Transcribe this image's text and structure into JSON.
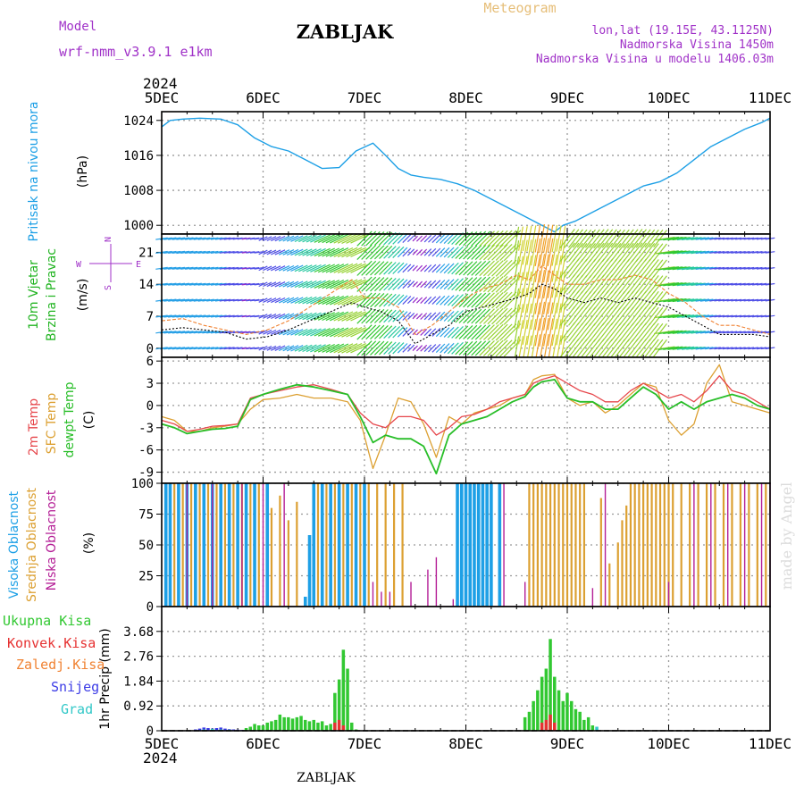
{
  "header": {
    "model_label": "Model",
    "model_name": "wrf-nmm_v3.9.1 e1km",
    "station": "ZABLJAK",
    "product": "Meteogram",
    "location": "lon,lat (19.15E, 43.1125N)",
    "altitude": "Nadmorska Visina 1450m",
    "model_altitude": "Nadmorska Visina u modelu 1406.03m"
  },
  "footer": {
    "station": "ZABLJAK",
    "watermark": "made by Angel"
  },
  "time_axis": {
    "year": "2024",
    "labels": [
      "5DEC",
      "6DEC",
      "7DEC",
      "8DEC",
      "9DEC",
      "10DEC",
      "11DEC"
    ],
    "range_hours": [
      0,
      144
    ]
  },
  "colors": {
    "pressure": "#1ea0e6",
    "wind_label": "#22b422",
    "temp2m": "#e6464b",
    "sfc": "#dca032",
    "dewpt": "#28be28",
    "purple": "#a032c8",
    "gold": "#e6be78",
    "high_cloud": "#1ea0e6",
    "mid_cloud": "#dca032",
    "low_cloud": "#b41e96",
    "tot_precip": "#32c832",
    "conv_precip": "#e63232",
    "frz_precip": "#f08232",
    "snow": "#3c3ce6",
    "hail": "#32c8c8"
  },
  "chart_data": [
    {
      "type": "line",
      "panel": "pressure",
      "ylabel": "Pritisak na nivou mora",
      "unit": "(hPa)",
      "ylim": [
        998,
        1026
      ],
      "yticks": [
        "1000",
        "1008",
        "1016",
        "1024"
      ],
      "grid": true,
      "x": [
        0,
        2,
        5,
        9,
        14,
        18,
        22,
        26,
        30,
        34,
        38,
        42,
        46,
        50,
        53,
        56,
        59,
        62,
        66,
        70,
        74,
        78,
        82,
        86,
        90,
        93,
        95,
        98,
        102,
        106,
        110,
        114,
        118,
        122,
        126,
        130,
        134,
        138,
        142,
        144
      ],
      "series": [
        {
          "values": [
            1022.5,
            1024,
            1024.3,
            1024.5,
            1024.3,
            1023,
            1020,
            1018,
            1017,
            1015,
            1013,
            1013.2,
            1017,
            1018.8,
            1016,
            1013,
            1011.5,
            1011,
            1010.5,
            1009.5,
            1008,
            1006,
            1004,
            1002,
            1000,
            998.5,
            1000,
            1001,
            1003,
            1005,
            1007,
            1009,
            1010,
            1012,
            1015,
            1018,
            1020,
            1022,
            1023.5,
            1024.5
          ]
        }
      ]
    },
    {
      "type": "line",
      "panel": "wind",
      "ylabel": "10m Vjetar Brzina i Pravac",
      "unit": "(m/s)",
      "direction_key": [
        "N",
        "E",
        "S",
        "W"
      ],
      "ylim": [
        -2,
        25
      ],
      "yticks": [
        "0",
        "7",
        "14",
        "21"
      ],
      "grid": true,
      "x": [
        0,
        5,
        10,
        15,
        20,
        25,
        30,
        35,
        40,
        45,
        48,
        52,
        56,
        60,
        64,
        68,
        72,
        76,
        80,
        84,
        87,
        90,
        93,
        96,
        100,
        104,
        108,
        112,
        116,
        120,
        124,
        128,
        132,
        136,
        140,
        144
      ],
      "series": [
        {
          "name": "speed",
          "values": [
            4,
            4.5,
            4,
            3.5,
            2,
            2.5,
            4,
            6,
            8,
            10,
            9,
            8,
            6,
            1,
            3,
            5,
            8,
            9,
            10,
            11,
            12,
            14,
            13,
            11,
            10,
            11,
            10,
            11,
            10,
            9,
            7,
            5,
            3,
            3,
            3,
            2.5
          ]
        },
        {
          "name": "gust",
          "values": [
            6,
            6.5,
            5,
            4,
            3,
            4,
            6,
            9,
            12,
            15,
            11,
            11,
            9,
            3,
            5,
            8,
            11,
            13,
            14,
            16,
            15,
            18,
            16,
            14,
            14,
            15,
            15,
            16,
            15,
            12,
            10,
            7,
            5,
            5,
            4,
            3
          ]
        }
      ]
    },
    {
      "type": "line",
      "panel": "temperature",
      "ylabel": "2m Temp / SFC Temp / dewpt Temp",
      "unit": "(C)",
      "ylim": [
        -10.5,
        6.5
      ],
      "yticks": [
        "-9",
        "-6",
        "-3",
        "0",
        "3",
        "6"
      ],
      "grid": true,
      "x": [
        0,
        3,
        6,
        9,
        12,
        15,
        18,
        21,
        24,
        28,
        32,
        36,
        40,
        44,
        47,
        50,
        53,
        56,
        59,
        62,
        65,
        68,
        71,
        74,
        77,
        80,
        83,
        86,
        88,
        90,
        93,
        96,
        99,
        102,
        105,
        108,
        111,
        114,
        117,
        120,
        123,
        126,
        129,
        132,
        135,
        138,
        141,
        144
      ],
      "series": [
        {
          "name": "2m Temp",
          "values": [
            -2,
            -2.5,
            -3.5,
            -3.2,
            -2.8,
            -2.7,
            -2.5,
            1,
            1.5,
            2,
            2.5,
            2.8,
            2.2,
            1.5,
            -1,
            -2.5,
            -3,
            -1.5,
            -1.5,
            -2,
            -4,
            -3,
            -1.5,
            -1.2,
            -0.5,
            0.5,
            1,
            1.5,
            3,
            3.5,
            4,
            3,
            2,
            1.5,
            0.5,
            0.5,
            2,
            3,
            2,
            1,
            1.5,
            0.5,
            2,
            4,
            2,
            1.5,
            0.5,
            -0.5
          ]
        },
        {
          "name": "SFC Temp",
          "values": [
            -1.5,
            -2,
            -3.5,
            -3.5,
            -3,
            -2.8,
            -2.5,
            -0.5,
            0.8,
            1,
            1.5,
            1,
            1,
            0.5,
            -2,
            -8.5,
            -4,
            1,
            0.5,
            -2.5,
            -7,
            -1.5,
            -2.5,
            -1,
            -0.5,
            0,
            1,
            1.5,
            3.5,
            4,
            4.2,
            1,
            0,
            0.5,
            -1,
            0,
            1.5,
            3,
            2.5,
            -2,
            -4,
            -2.5,
            3,
            5.5,
            0.5,
            0,
            -0.5,
            -1
          ]
        },
        {
          "name": "dewpt Temp",
          "values": [
            -2.5,
            -3,
            -3.8,
            -3.5,
            -3.2,
            -3.1,
            -2.8,
            0.8,
            1.5,
            2.2,
            2.8,
            2.5,
            2,
            1.5,
            -1.5,
            -5,
            -4,
            -4.5,
            -4.5,
            -5.5,
            -9.2,
            -4,
            -2.5,
            -2,
            -1.5,
            -0.5,
            0.5,
            1.2,
            2.5,
            3.2,
            3.5,
            1,
            0.5,
            0.5,
            -0.5,
            -0.5,
            1,
            2.5,
            1.5,
            -0.5,
            0.5,
            -0.5,
            0.5,
            1,
            1.5,
            1,
            0,
            -0.5
          ]
        }
      ]
    },
    {
      "type": "bar",
      "panel": "clouds",
      "ylabel": "Visoka Oblacnost / Srednja Oblacnost / Niska Oblacnost",
      "unit": "(%)",
      "ylim": [
        0,
        100
      ],
      "yticks": [
        "0",
        "25",
        "50",
        "75",
        "100"
      ],
      "grid": true,
      "series": [
        {
          "name": "Visoka Oblacnost",
          "x": [
            1,
            2,
            4,
            6,
            8,
            10,
            12,
            14,
            16,
            18,
            20,
            22,
            25,
            34,
            35,
            36,
            38,
            40,
            42,
            44,
            46,
            48,
            70,
            71,
            72,
            73,
            74,
            75,
            76,
            77,
            78,
            80
          ],
          "values": [
            100,
            100,
            100,
            100,
            100,
            100,
            100,
            100,
            100,
            100,
            100,
            100,
            100,
            8,
            58,
            100,
            100,
            100,
            100,
            100,
            100,
            100,
            100,
            100,
            100,
            100,
            100,
            100,
            100,
            100,
            100,
            100
          ]
        },
        {
          "name": "Srednja Oblacnost",
          "x": [
            3,
            5,
            7,
            9,
            11,
            13,
            15,
            17,
            19,
            21,
            23,
            26,
            28,
            30,
            32,
            37,
            39,
            41,
            43,
            45,
            47,
            49,
            51,
            53,
            55,
            57,
            87,
            88,
            89,
            90,
            91,
            92,
            93,
            94,
            95,
            96,
            97,
            98,
            99,
            100,
            104,
            106,
            108,
            109,
            110,
            111,
            112,
            113,
            114,
            115,
            116,
            117,
            118,
            119,
            120,
            121,
            123,
            125,
            127,
            129,
            131,
            133,
            135,
            137,
            139,
            141,
            143
          ],
          "values": [
            100,
            100,
            100,
            100,
            100,
            100,
            100,
            100,
            100,
            100,
            100,
            80,
            90,
            70,
            85,
            100,
            100,
            100,
            100,
            100,
            100,
            100,
            100,
            100,
            100,
            100,
            100,
            100,
            100,
            100,
            100,
            100,
            100,
            100,
            100,
            100,
            100,
            100,
            100,
            100,
            88,
            35,
            52,
            70,
            82,
            100,
            100,
            100,
            100,
            100,
            100,
            100,
            100,
            100,
            100,
            100,
            100,
            100,
            100,
            100,
            100,
            100,
            100,
            100,
            100,
            100,
            100
          ]
        },
        {
          "name": "Niska Oblacnost",
          "x": [
            6,
            12,
            19,
            24,
            29,
            50,
            52,
            54,
            59,
            63,
            65,
            69,
            81,
            86,
            102,
            105,
            120,
            126,
            130,
            134,
            138,
            142,
            144
          ],
          "values": [
            100,
            100,
            100,
            100,
            100,
            20,
            12,
            12,
            20,
            30,
            40,
            6,
            100,
            20,
            15,
            100,
            20,
            100,
            100,
            100,
            100,
            100,
            100
          ]
        }
      ]
    },
    {
      "type": "bar",
      "panel": "precipitation",
      "ylabel": "1hr Precip",
      "unit": "(mm)",
      "ylim": [
        0,
        4.6
      ],
      "yticks": [
        "0",
        "0.92",
        "1.84",
        "2.76",
        "3.68"
      ],
      "grid": true,
      "legend": [
        "Ukupna Kisa",
        "Konvek.Kisa",
        "Zaledj.Kisa",
        "Snijeg",
        "Grad"
      ],
      "series": [
        {
          "name": "Ukupna Kisa",
          "x": [
            20,
            21,
            22,
            23,
            24,
            25,
            26,
            27,
            28,
            29,
            30,
            31,
            32,
            33,
            34,
            35,
            36,
            37,
            38,
            39,
            40,
            41,
            42,
            43,
            44,
            45,
            46,
            47,
            48,
            49,
            86,
            87,
            88,
            89,
            90,
            91,
            92,
            93,
            94,
            95,
            96,
            97,
            98,
            99,
            100,
            101,
            102
          ],
          "values": [
            0.1,
            0.15,
            0.25,
            0.2,
            0.2,
            0.3,
            0.35,
            0.4,
            0.6,
            0.5,
            0.5,
            0.45,
            0.5,
            0.55,
            0.4,
            0.35,
            0.4,
            0.3,
            0.35,
            0.2,
            0.25,
            1.4,
            1.9,
            3.0,
            2.3,
            0.3,
            0.05,
            0,
            0,
            0,
            0.5,
            0.7,
            1.1,
            1.5,
            2.0,
            2.3,
            3.4,
            2.0,
            1.5,
            1.1,
            1.4,
            1.1,
            0.8,
            0.7,
            0.4,
            0.5,
            0.2
          ]
        },
        {
          "name": "Konvek.Kisa",
          "x": [
            41,
            42,
            43,
            90,
            91,
            92,
            93
          ],
          "values": [
            0.3,
            0.4,
            0.2,
            0.3,
            0.4,
            0.6,
            0.3
          ]
        },
        {
          "name": "Snijeg",
          "x": [
            8,
            9,
            10,
            11,
            12,
            13,
            14,
            15,
            16,
            17,
            18,
            19
          ],
          "values": [
            0.05,
            0.08,
            0.12,
            0.1,
            0.08,
            0.1,
            0.12,
            0.08,
            0.06,
            0.05,
            0.04,
            0.03
          ]
        },
        {
          "name": "Grad",
          "x": [
            10,
            12,
            14,
            16,
            103
          ],
          "values": [
            0.05,
            0.07,
            0.05,
            0.04,
            0.15
          ]
        }
      ]
    }
  ]
}
